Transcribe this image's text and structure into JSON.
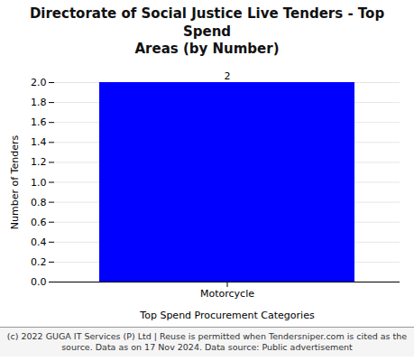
{
  "chart_data": {
    "type": "bar",
    "title": "Directorate of Social Justice Live Tenders - Top Spend\nAreas (by Number)",
    "categories": [
      "Motorcycle"
    ],
    "values": [
      2
    ],
    "color": "#0000FF",
    "xlabel": "Top Spend Procurement Categories",
    "ylabel": "Number of Tenders",
    "ylim": [
      0.0,
      2.0
    ],
    "yticks": [
      {
        "value": 0,
        "label": "0.0"
      },
      0.2,
      0.4,
      0.6,
      0.8,
      {
        "value": 1,
        "label": "1.0"
      },
      1.2,
      1.4,
      1.6,
      1.8,
      {
        "value": 2,
        "label": "2.0"
      }
    ],
    "grid": true,
    "data_labels": true,
    "caption": "(c) 2022 GUGA IT Services (P) Ltd | Reuse is permitted when Tendersniper.com is cited as the\nsource. Data as on 17 Nov 2024. Data source: Public advertisement"
  }
}
